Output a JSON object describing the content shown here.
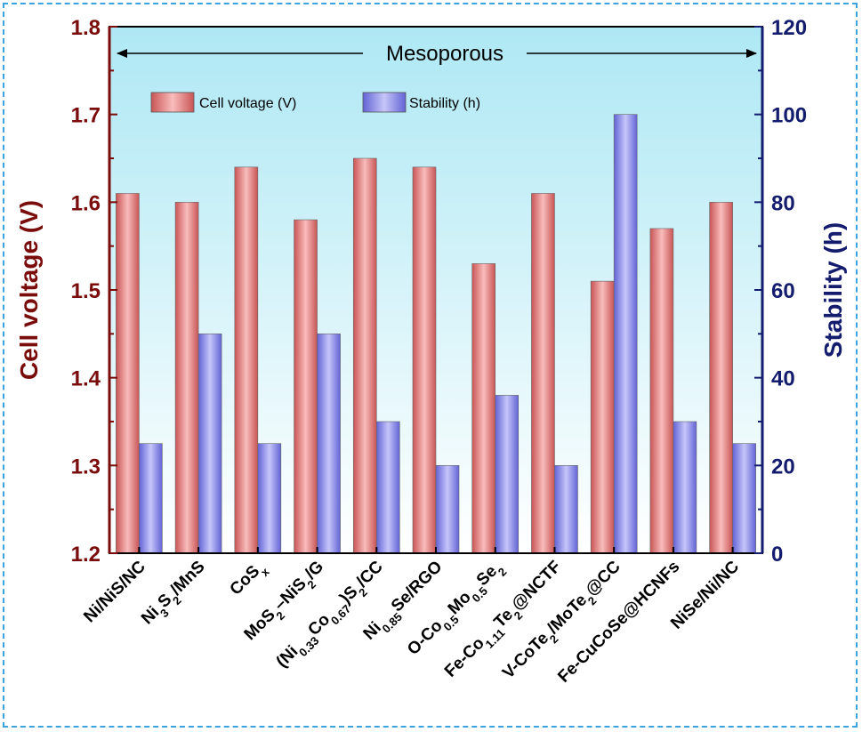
{
  "chart_data": {
    "type": "bar",
    "categories": [
      {
        "parts": [
          [
            "Ni/NiS/NC",
            ""
          ]
        ]
      },
      {
        "parts": [
          [
            "Ni",
            ""
          ],
          [
            "3",
            "sub"
          ],
          [
            "S",
            ""
          ],
          [
            "2",
            "sub"
          ],
          [
            "/MnS",
            ""
          ]
        ]
      },
      {
        "parts": [
          [
            "CoS",
            ""
          ],
          [
            "x",
            "sub"
          ]
        ]
      },
      {
        "parts": [
          [
            "MoS",
            ""
          ],
          [
            "2",
            "sub"
          ],
          [
            "–NiS",
            ""
          ],
          [
            "2",
            "sub"
          ],
          [
            "/G",
            ""
          ]
        ]
      },
      {
        "parts": [
          [
            "(Ni",
            ""
          ],
          [
            "0.33",
            "sub"
          ],
          [
            "Co",
            ""
          ],
          [
            "0.67",
            "sub"
          ],
          [
            ")S",
            ""
          ],
          [
            "2",
            "sub"
          ],
          [
            "/CC",
            ""
          ]
        ]
      },
      {
        "parts": [
          [
            "Ni",
            ""
          ],
          [
            "0.85",
            "sub"
          ],
          [
            "Se/RGO",
            ""
          ]
        ]
      },
      {
        "parts": [
          [
            "O-Co",
            ""
          ],
          [
            "0.5",
            "sub"
          ],
          [
            "Mo",
            ""
          ],
          [
            "0.5",
            "sub"
          ],
          [
            "Se",
            ""
          ],
          [
            "2",
            "sub"
          ]
        ]
      },
      {
        "parts": [
          [
            "Fe-Co",
            ""
          ],
          [
            "1.11",
            "sub"
          ],
          [
            "Te",
            ""
          ],
          [
            "2",
            "sub"
          ],
          [
            "@NCTF",
            ""
          ]
        ]
      },
      {
        "parts": [
          [
            "V-CoTe",
            ""
          ],
          [
            "2",
            "sub"
          ],
          [
            "/MoTe",
            ""
          ],
          [
            "2",
            "sub"
          ],
          [
            "@CC",
            ""
          ]
        ]
      },
      {
        "parts": [
          [
            "Fe-CuCoSe@HCNFs",
            ""
          ]
        ]
      },
      {
        "parts": [
          [
            "NiSe/Ni/NC",
            ""
          ]
        ]
      }
    ],
    "series": [
      {
        "name": "Cell voltage (V)",
        "axis": "left",
        "color": "#e07f7f",
        "values": [
          1.61,
          1.6,
          1.64,
          1.58,
          1.65,
          1.64,
          1.53,
          1.61,
          1.51,
          1.57,
          1.6
        ]
      },
      {
        "name": "Stability (h)",
        "axis": "right",
        "color": "#8b8bea",
        "values": [
          25,
          50,
          25,
          50,
          30,
          20,
          36,
          20,
          100,
          30,
          25
        ]
      }
    ],
    "ylabel_left": "Cell voltage (V)",
    "ylabel_right": "Stability (h)",
    "ylim_left": [
      1.2,
      1.8
    ],
    "yticks_left": [
      "1.2",
      "1.3",
      "1.4",
      "1.5",
      "1.6",
      "1.7",
      "1.8"
    ],
    "ylim_right": [
      0,
      120
    ],
    "yticks_right": [
      "0",
      "20",
      "40",
      "60",
      "80",
      "100",
      "120"
    ],
    "annotation": "Mesoporous",
    "legend": {
      "placement": "top-left"
    },
    "grid": false,
    "background": {
      "top": "#aee8f4",
      "bottom": "#ffffff"
    },
    "left_axis_color": "#7a0c0c",
    "right_axis_color": "#141c6e"
  }
}
